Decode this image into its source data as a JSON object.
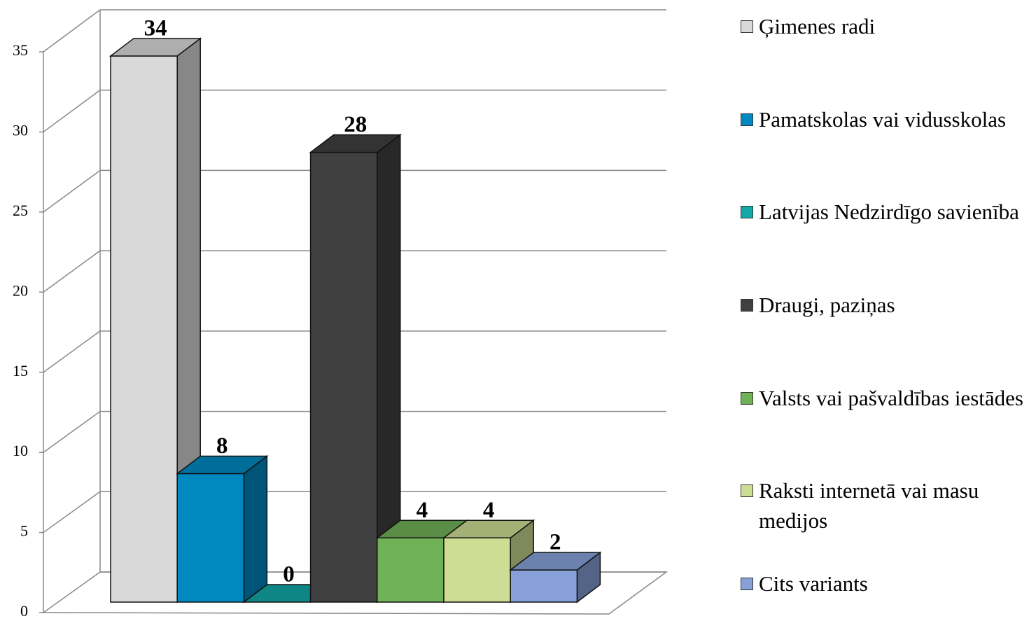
{
  "chart_data": {
    "type": "bar3d",
    "series": [
      {
        "name": "Ģimenes radi",
        "color": "#d9d9d9",
        "values": [
          34
        ]
      },
      {
        "name": "Pamatskolas vai vidusskolas",
        "color": "#0089c1",
        "values": [
          8
        ]
      },
      {
        "name": "Latvijas Nedzirdīgo savienība",
        "color": "#12a8a8",
        "values": [
          0
        ]
      },
      {
        "name": "Draugi, paziņas",
        "color": "#404040",
        "values": [
          28
        ]
      },
      {
        "name": "Valsts vai pašvaldības iestādes",
        "color": "#70b257",
        "values": [
          4
        ]
      },
      {
        "name": "Raksti internetā vai masu medijos",
        "color": "#cddd94",
        "values": [
          4
        ]
      },
      {
        "name": "Cits variants",
        "color": "#87a1d8",
        "values": [
          2
        ]
      }
    ],
    "ylim": [
      0,
      35
    ],
    "yticks": [
      0,
      5,
      10,
      15,
      20,
      25,
      30,
      35
    ],
    "grid": true
  }
}
